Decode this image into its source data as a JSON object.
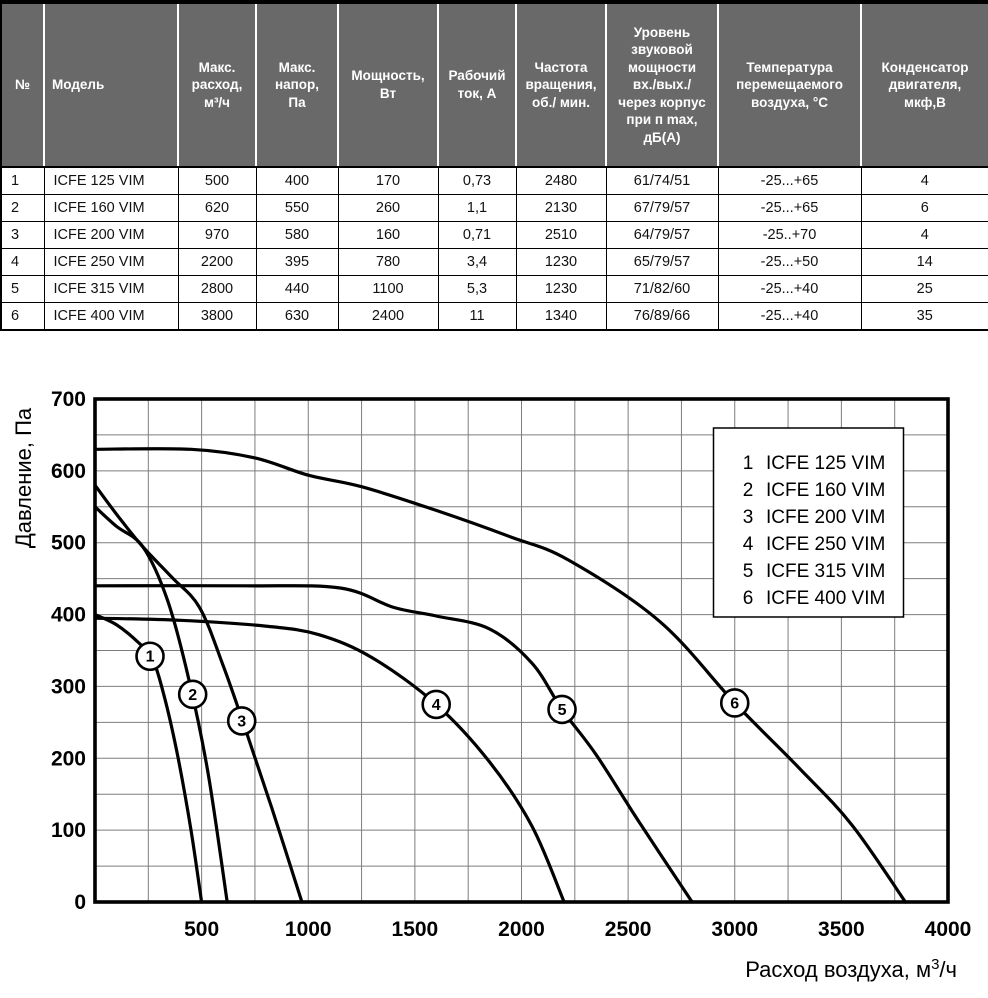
{
  "table": {
    "columns": [
      {
        "label": "№",
        "align": "center",
        "body_align": "left"
      },
      {
        "label": "Модель",
        "align": "left",
        "body_align": "left"
      },
      {
        "label": "Макс.\nрасход,\nм³/ч",
        "align": "center",
        "body_align": "center"
      },
      {
        "label": "Макс.\nнапор,\nПа",
        "align": "center",
        "body_align": "center"
      },
      {
        "label": "Мощность,\nВт",
        "align": "center",
        "body_align": "center"
      },
      {
        "label": "Рабочий\nток, А",
        "align": "center",
        "body_align": "center"
      },
      {
        "label": "Частота\nвращения,\nоб./ мин.",
        "align": "center",
        "body_align": "center"
      },
      {
        "label": "Уровень\nзвуковой\nмощности\nвх./вых./\nчерез корпус\nпри п mах,\nдБ(А)",
        "align": "center",
        "body_align": "center"
      },
      {
        "label": "Температура\nперемещаемого\nвоздуха, °С",
        "align": "center",
        "body_align": "center"
      },
      {
        "label": "Конденсатор\nдвигателя,\nмкф,В",
        "align": "center",
        "body_align": "center"
      }
    ],
    "rows": [
      [
        "1",
        "ICFE 125 VIM",
        "500",
        "400",
        "170",
        "0,73",
        "2480",
        "61/74/51",
        "-25...+65",
        "4"
      ],
      [
        "2",
        "ICFE 160 VIM",
        "620",
        "550",
        "260",
        "1,1",
        "2130",
        "67/79/57",
        "-25...+65",
        "6"
      ],
      [
        "3",
        "ICFE 200 VIM",
        "970",
        "580",
        "160",
        "0,71",
        "2510",
        "64/79/57",
        "-25..+70",
        "4"
      ],
      [
        "4",
        "ICFE 250 VIM",
        "2200",
        "395",
        "780",
        "3,4",
        "1230",
        "65/79/57",
        "-25...+50",
        "14"
      ],
      [
        "5",
        "ICFE 315 VIM",
        "2800",
        "440",
        "1100",
        "5,3",
        "1230",
        "71/82/60",
        "-25...+40",
        "25"
      ],
      [
        "6",
        "ICFE 400 VIM",
        "3800",
        "630",
        "2400",
        "11",
        "1340",
        "76/89/66",
        "-25...+40",
        "35"
      ]
    ]
  },
  "chart_data": {
    "type": "line",
    "title": "",
    "xlabel": "Расход воздуха, м³/ч",
    "ylabel": "Давление, Па",
    "xlim": [
      0,
      4000
    ],
    "ylim": [
      0,
      700
    ],
    "x_ticks": [
      500,
      1000,
      1500,
      2000,
      2500,
      3000,
      3500,
      4000
    ],
    "y_ticks": [
      0,
      100,
      200,
      300,
      400,
      500,
      600,
      700
    ],
    "x_minor_step": 250,
    "y_minor_step": 50,
    "grid": true,
    "legend_position": "top-right",
    "legend": [
      {
        "num": "1",
        "label": "ICFE 125 VIM"
      },
      {
        "num": "2",
        "label": "ICFE 160 VIM"
      },
      {
        "num": "3",
        "label": "ICFE 200 VIM"
      },
      {
        "num": "4",
        "label": "ICFE 250 VIM"
      },
      {
        "num": "5",
        "label": "ICFE 315 VIM"
      },
      {
        "num": "6",
        "label": "ICFE 400 VIM"
      }
    ],
    "series": [
      {
        "name": "ICFE 125 VIM",
        "marker": "1",
        "marker_at": [
          258,
          342
        ],
        "points": [
          [
            0,
            400
          ],
          [
            100,
            386
          ],
          [
            200,
            362
          ],
          [
            270,
            338
          ],
          [
            330,
            280
          ],
          [
            390,
            200
          ],
          [
            450,
            100
          ],
          [
            500,
            0
          ]
        ]
      },
      {
        "name": "ICFE 160 VIM",
        "marker": "2",
        "marker_at": [
          458,
          289
        ],
        "points": [
          [
            0,
            550
          ],
          [
            100,
            523
          ],
          [
            225,
            494
          ],
          [
            340,
            420
          ],
          [
            440,
            310
          ],
          [
            530,
            180
          ],
          [
            620,
            0
          ]
        ]
      },
      {
        "name": "ICFE 200 VIM",
        "marker": "3",
        "marker_at": [
          688,
          252
        ],
        "points": [
          [
            0,
            580
          ],
          [
            110,
            536
          ],
          [
            225,
            494
          ],
          [
            360,
            452
          ],
          [
            490,
            410
          ],
          [
            600,
            330
          ],
          [
            700,
            245
          ],
          [
            830,
            130
          ],
          [
            970,
            0
          ]
        ]
      },
      {
        "name": "ICFE 250 VIM",
        "marker": "4",
        "marker_at": [
          1600,
          275
        ],
        "points": [
          [
            0,
            395
          ],
          [
            400,
            392
          ],
          [
            800,
            384
          ],
          [
            1050,
            372
          ],
          [
            1300,
            340
          ],
          [
            1600,
            275
          ],
          [
            1850,
            195
          ],
          [
            2050,
            105
          ],
          [
            2200,
            0
          ]
        ]
      },
      {
        "name": "ICFE 315 VIM",
        "marker": "5",
        "marker_at": [
          2190,
          268
        ],
        "points": [
          [
            0,
            440
          ],
          [
            700,
            440
          ],
          [
            1150,
            437
          ],
          [
            1400,
            410
          ],
          [
            1600,
            398
          ],
          [
            1850,
            380
          ],
          [
            2050,
            332
          ],
          [
            2190,
            268
          ],
          [
            2350,
            205
          ],
          [
            2550,
            112
          ],
          [
            2800,
            0
          ]
        ]
      },
      {
        "name": "ICFE 400 VIM",
        "marker": "6",
        "marker_at": [
          3000,
          277
        ],
        "points": [
          [
            0,
            630
          ],
          [
            450,
            630
          ],
          [
            750,
            618
          ],
          [
            1000,
            594
          ],
          [
            1250,
            578
          ],
          [
            1600,
            545
          ],
          [
            1950,
            508
          ],
          [
            2220,
            476
          ],
          [
            2650,
            390
          ],
          [
            3000,
            277
          ],
          [
            3300,
            187
          ],
          [
            3550,
            107
          ],
          [
            3800,
            0
          ]
        ]
      }
    ]
  },
  "colors": {
    "header_bg": "#696969",
    "header_text": "#ffffff",
    "curve": "#000000",
    "grid": "#7d7d7d",
    "axis": "#000000",
    "legend_bg": "#ffffff"
  }
}
